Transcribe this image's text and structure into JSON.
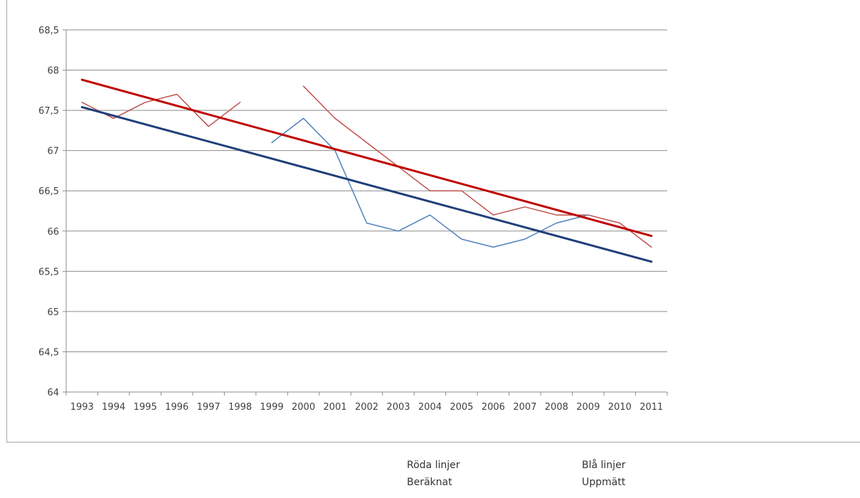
{
  "chart_data": {
    "type": "line",
    "categories": [
      "1993",
      "1994",
      "1995",
      "1996",
      "1997",
      "1998",
      "1999",
      "2000",
      "2001",
      "2002",
      "2003",
      "2004",
      "2005",
      "2006",
      "2007",
      "2008",
      "2009",
      "2010",
      "2011"
    ],
    "ylim": [
      64,
      68.5
    ],
    "yticks": [
      64,
      64.5,
      65,
      65.5,
      66,
      66.5,
      67,
      67.5,
      68,
      68.5
    ],
    "ytick_labels": [
      "64",
      "64,5",
      "65",
      "65,5",
      "66",
      "66,5",
      "67",
      "67,5",
      "68",
      "68,5"
    ],
    "grid": true,
    "series": [
      {
        "color": "#c0504d",
        "width": 1.5,
        "values": [
          67.6,
          67.4,
          67.6,
          67.7,
          67.3,
          67.6,
          null,
          67.8,
          67.4,
          67.1,
          66.8,
          66.5,
          66.5,
          66.2,
          66.3,
          66.2,
          66.2,
          66.1,
          65.8
        ]
      },
      {
        "color": "#4f81bd",
        "width": 1.5,
        "values": [
          null,
          null,
          null,
          null,
          null,
          null,
          67.1,
          67.4,
          67.0,
          66.1,
          66.0,
          66.2,
          65.9,
          65.8,
          65.9,
          66.1,
          66.2,
          null,
          null
        ]
      },
      {
        "color": "#c00000",
        "width": 3,
        "trend": true,
        "values": [
          67.88,
          null,
          null,
          null,
          null,
          null,
          null,
          null,
          null,
          null,
          null,
          null,
          null,
          null,
          null,
          null,
          null,
          null,
          65.94
        ]
      },
      {
        "color": "#1f3f7a",
        "width": 3,
        "trend": true,
        "values": [
          67.54,
          null,
          null,
          null,
          null,
          null,
          null,
          null,
          null,
          null,
          null,
          null,
          null,
          null,
          null,
          null,
          null,
          null,
          65.62
        ]
      }
    ]
  },
  "legend": {
    "red_title": "Röda linjer",
    "red_desc": "Beräknat",
    "blue_title": "Blå linjer",
    "blue_desc": "Uppmätt"
  }
}
